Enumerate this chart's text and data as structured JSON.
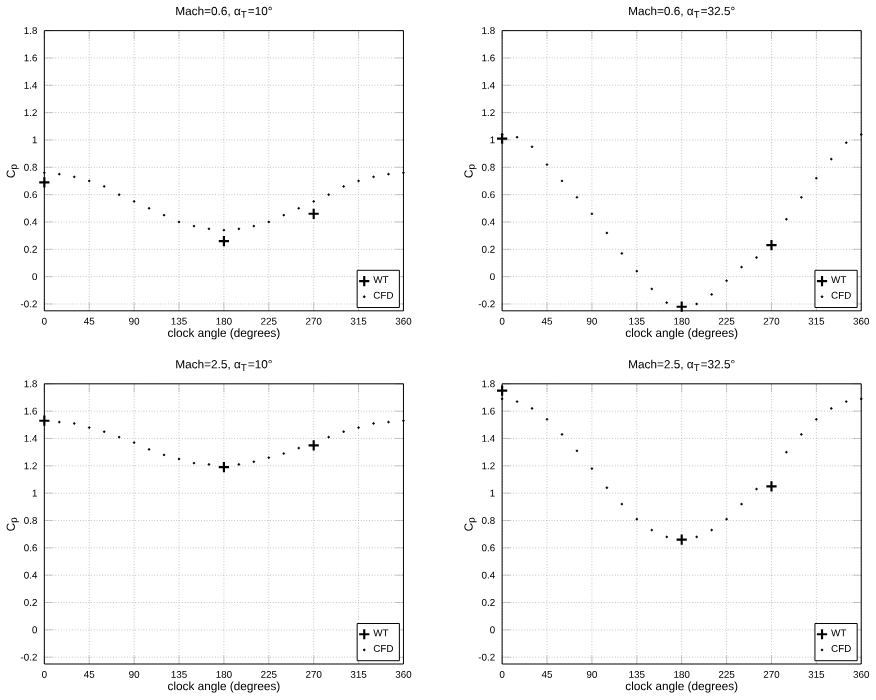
{
  "chart_data": [
    {
      "type": "scatter",
      "title": "Mach=0.6, α$_{T}$=10°",
      "xlabel": "clock angle (degrees)",
      "ylabel": "C$_{p}$",
      "xlim": [
        0,
        360
      ],
      "xticks": [
        0,
        45,
        90,
        135,
        180,
        225,
        270,
        315,
        360
      ],
      "ylim": [
        -0.25,
        1.8
      ],
      "yticks": [
        -0.2,
        0,
        0.2,
        0.4,
        0.6,
        0.8,
        1,
        1.2,
        1.4,
        1.6,
        1.8
      ],
      "grid": true,
      "legend": "bottom right",
      "series": [
        {
          "name": "WT",
          "type": "scatter",
          "marker": "cross",
          "color": "#000000",
          "x": [
            0,
            180,
            270
          ],
          "values": [
            0.69,
            0.26,
            0.46
          ]
        },
        {
          "name": "CFD",
          "type": "scatter",
          "marker": "circle",
          "color": "#000000",
          "x": [
            0,
            15,
            30,
            45,
            60,
            75,
            90,
            105,
            120,
            135,
            150,
            165,
            180,
            195,
            210,
            225,
            240,
            255,
            270,
            285,
            300,
            315,
            330,
            345,
            360
          ],
          "values": [
            0.76,
            0.75,
            0.73,
            0.7,
            0.66,
            0.6,
            0.55,
            0.5,
            0.45,
            0.4,
            0.37,
            0.35,
            0.34,
            0.35,
            0.37,
            0.4,
            0.45,
            0.5,
            0.55,
            0.6,
            0.66,
            0.7,
            0.73,
            0.75,
            0.76
          ]
        }
      ]
    },
    {
      "type": "scatter",
      "title": "Mach=0.6, α$_{T}$=32.5°",
      "xlabel": "clock angle (degrees)",
      "ylabel": "C$_{p}$",
      "xlim": [
        0,
        360
      ],
      "xticks": [
        0,
        45,
        90,
        135,
        180,
        225,
        270,
        315,
        360
      ],
      "ylim": [
        -0.25,
        1.8
      ],
      "yticks": [
        -0.2,
        0,
        0.2,
        0.4,
        0.6,
        0.8,
        1,
        1.2,
        1.4,
        1.6,
        1.8
      ],
      "grid": true,
      "legend": "bottom right",
      "series": [
        {
          "name": "WT",
          "type": "scatter",
          "marker": "cross",
          "color": "#000000",
          "x": [
            0,
            180,
            270
          ],
          "values": [
            1.01,
            -0.22,
            0.23
          ]
        },
        {
          "name": "CFD",
          "type": "scatter",
          "marker": "circle",
          "color": "#000000",
          "x": [
            0,
            15,
            30,
            45,
            60,
            75,
            90,
            105,
            120,
            135,
            150,
            165,
            180,
            195,
            210,
            225,
            240,
            255,
            270,
            285,
            300,
            315,
            330,
            345,
            360
          ],
          "values": [
            1.04,
            1.02,
            0.95,
            0.82,
            0.7,
            0.58,
            0.46,
            0.32,
            0.17,
            0.04,
            -0.09,
            -0.19,
            null,
            -0.2,
            -0.13,
            -0.03,
            0.07,
            0.14,
            null,
            0.42,
            0.58,
            0.72,
            0.86,
            0.98,
            1.04
          ]
        }
      ]
    },
    {
      "type": "scatter",
      "title": "Mach=2.5, α$_{T}$=10°",
      "xlabel": "clock angle (degrees)",
      "ylabel": "C$_{p}$",
      "xlim": [
        0,
        360
      ],
      "xticks": [
        0,
        45,
        90,
        135,
        180,
        225,
        270,
        315,
        360
      ],
      "ylim": [
        -0.25,
        1.8
      ],
      "yticks": [
        -0.2,
        0,
        0.2,
        0.4,
        0.6,
        0.8,
        1,
        1.2,
        1.4,
        1.6,
        1.8
      ],
      "grid": true,
      "legend": "bottom right",
      "series": [
        {
          "name": "WT",
          "type": "scatter",
          "marker": "cross",
          "color": "#000000",
          "x": [
            0,
            180,
            270
          ],
          "values": [
            1.53,
            1.19,
            1.35
          ]
        },
        {
          "name": "CFD",
          "type": "scatter",
          "marker": "circle",
          "color": "#000000",
          "x": [
            15,
            30,
            45,
            60,
            75,
            90,
            105,
            120,
            135,
            150,
            165,
            180,
            195,
            210,
            225,
            240,
            255,
            270,
            285,
            300,
            315,
            330,
            345,
            360
          ],
          "values": [
            1.52,
            1.51,
            1.48,
            1.45,
            1.41,
            1.37,
            1.32,
            1.28,
            1.25,
            1.22,
            1.21,
            null,
            1.21,
            1.23,
            1.26,
            1.29,
            1.33,
            null,
            1.41,
            1.45,
            1.48,
            1.51,
            1.52,
            1.53
          ]
        }
      ]
    },
    {
      "type": "scatter",
      "title": "Mach=2.5, α$_{T}$=32.5°",
      "xlabel": "clock angle (degrees)",
      "ylabel": "C$_{p}$",
      "xlim": [
        0,
        360
      ],
      "xticks": [
        0,
        45,
        90,
        135,
        180,
        225,
        270,
        315,
        360
      ],
      "ylim": [
        -0.25,
        1.8
      ],
      "yticks": [
        -0.2,
        0,
        0.2,
        0.4,
        0.6,
        0.8,
        1,
        1.2,
        1.4,
        1.6,
        1.8
      ],
      "grid": true,
      "legend": "bottom right",
      "series": [
        {
          "name": "WT",
          "type": "scatter",
          "marker": "cross",
          "color": "#000000",
          "x": [
            0,
            180,
            270
          ],
          "values": [
            1.75,
            0.66,
            1.05
          ]
        },
        {
          "name": "CFD",
          "type": "scatter",
          "marker": "circle",
          "color": "#000000",
          "x": [
            0,
            15,
            30,
            45,
            60,
            75,
            90,
            105,
            120,
            135,
            150,
            165,
            180,
            195,
            210,
            225,
            240,
            255,
            270,
            285,
            300,
            315,
            330,
            345,
            360
          ],
          "values": [
            1.69,
            1.67,
            1.62,
            1.54,
            1.43,
            1.31,
            1.18,
            1.04,
            0.92,
            0.81,
            0.73,
            0.68,
            null,
            0.68,
            0.73,
            0.81,
            0.92,
            1.03,
            null,
            1.3,
            1.43,
            1.54,
            1.62,
            1.67,
            1.69
          ]
        }
      ]
    }
  ]
}
